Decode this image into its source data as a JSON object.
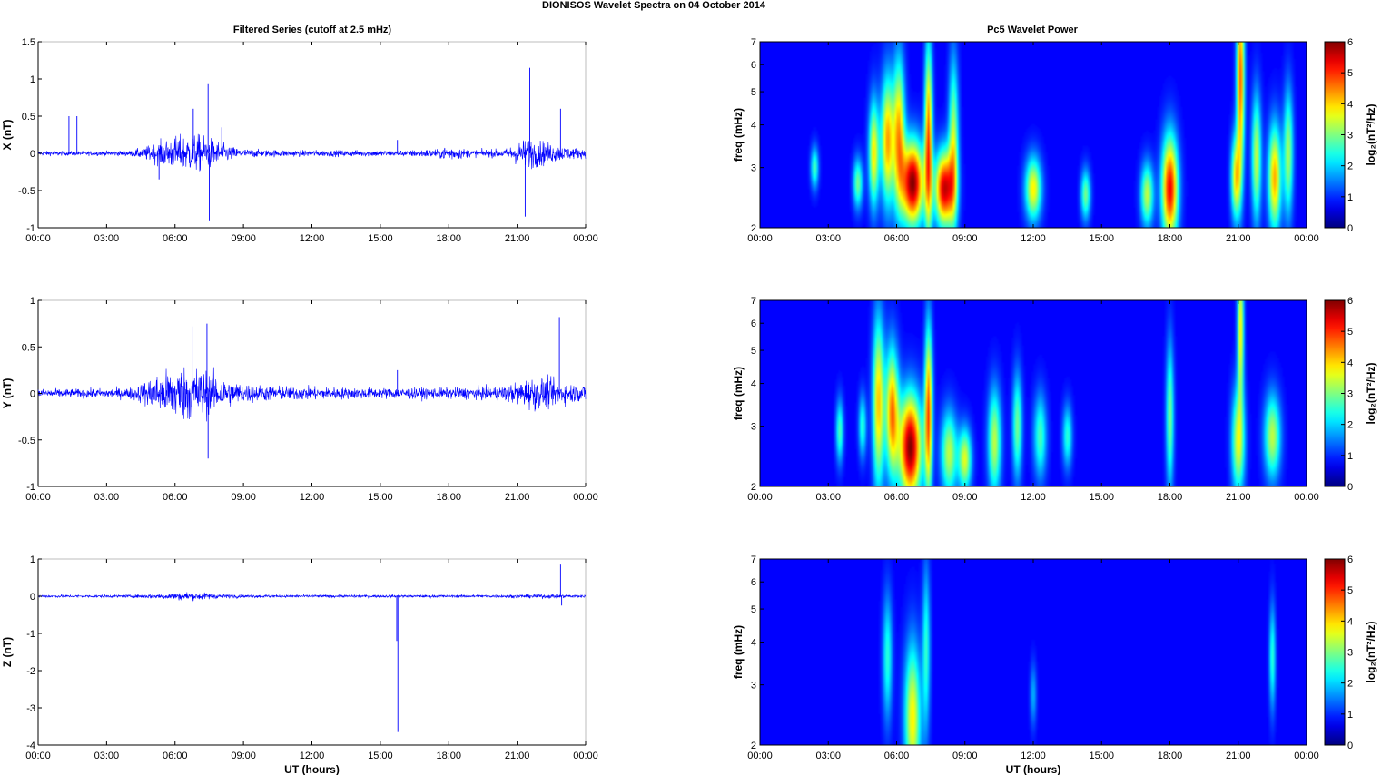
{
  "figure_title": "DIONISOS Wavelet Spectra on 04 October   2014",
  "left_column_title": "Filtered Series (cutoff at 2.5 mHz)",
  "right_column_title": "Pc5 Wavelet Power",
  "colors": {
    "trace": "#0000ff",
    "axes": "#000000",
    "plot_frame": "#bebebe",
    "background": "#ffffff"
  },
  "chart_data": [
    {
      "type": "line",
      "component": "X",
      "ylabel": "X (nT)",
      "xlabel": "",
      "xlim": [
        0,
        24
      ],
      "ylim": [
        -1,
        1.5
      ],
      "yticks": [
        -1,
        -0.5,
        0,
        0.5,
        1,
        1.5
      ],
      "ytick_labels": [
        "-1",
        "-0.5",
        "0",
        "0.5",
        "1",
        "1.5"
      ],
      "xtick_labels": [
        "00:00",
        "03:00",
        "06:00",
        "09:00",
        "12:00",
        "15:00",
        "18:00",
        "21:00",
        "00:00"
      ],
      "envelope_hours": [
        0,
        2,
        4,
        4.5,
        5,
        5.5,
        6,
        6.5,
        7,
        7.5,
        8,
        8.5,
        9,
        10,
        12,
        14,
        16,
        17.5,
        18,
        18.5,
        19,
        20.5,
        21,
        21.5,
        22,
        22.5,
        23,
        24
      ],
      "envelope_amplitude_nT": [
        0.05,
        0.05,
        0.06,
        0.12,
        0.2,
        0.3,
        0.38,
        0.42,
        0.42,
        0.36,
        0.25,
        0.15,
        0.1,
        0.08,
        0.07,
        0.07,
        0.07,
        0.1,
        0.18,
        0.12,
        0.08,
        0.1,
        0.25,
        0.35,
        0.3,
        0.22,
        0.16,
        0.1
      ],
      "spikes": [
        {
          "t": 1.35,
          "v": 0.5
        },
        {
          "t": 1.7,
          "v": 0.5
        },
        {
          "t": 5.3,
          "v": -0.35
        },
        {
          "t": 6.8,
          "v": 0.6
        },
        {
          "t": 7.45,
          "v": 0.93
        },
        {
          "t": 7.5,
          "v": -0.9
        },
        {
          "t": 8.05,
          "v": 0.35
        },
        {
          "t": 15.75,
          "v": 0.18
        },
        {
          "t": 21.35,
          "v": -0.85
        },
        {
          "t": 21.55,
          "v": 1.15
        },
        {
          "t": 22.9,
          "v": 0.6
        }
      ]
    },
    {
      "type": "line",
      "component": "Y",
      "ylabel": "Y (nT)",
      "xlabel": "",
      "xlim": [
        0,
        24
      ],
      "ylim": [
        -1,
        1
      ],
      "yticks": [
        -1,
        -0.5,
        0,
        0.5,
        1
      ],
      "ytick_labels": [
        "-1",
        "-0.5",
        "0",
        "0.5",
        "1"
      ],
      "xtick_labels": [
        "00:00",
        "03:00",
        "06:00",
        "09:00",
        "12:00",
        "15:00",
        "18:00",
        "21:00",
        "00:00"
      ],
      "envelope_hours": [
        0,
        2,
        4,
        4.5,
        5,
        5.5,
        6,
        6.5,
        7,
        7.5,
        8,
        8.5,
        9,
        10,
        12,
        14,
        16,
        18,
        20,
        21,
        21.5,
        22,
        22.5,
        23,
        24
      ],
      "envelope_amplitude_nT": [
        0.08,
        0.08,
        0.1,
        0.18,
        0.3,
        0.4,
        0.48,
        0.5,
        0.48,
        0.4,
        0.3,
        0.22,
        0.18,
        0.14,
        0.12,
        0.1,
        0.1,
        0.1,
        0.12,
        0.2,
        0.28,
        0.3,
        0.25,
        0.2,
        0.15
      ],
      "spikes": [
        {
          "t": 6.75,
          "v": 0.72
        },
        {
          "t": 7.4,
          "v": 0.75
        },
        {
          "t": 7.45,
          "v": -0.7
        },
        {
          "t": 15.75,
          "v": 0.25
        },
        {
          "t": 22.85,
          "v": 0.82
        }
      ]
    },
    {
      "type": "line",
      "component": "Z",
      "ylabel": "Z (nT)",
      "xlabel": "UT (hours)",
      "xlim": [
        0,
        24
      ],
      "ylim": [
        -4,
        1
      ],
      "yticks": [
        -4,
        -3,
        -2,
        -1,
        0,
        1
      ],
      "ytick_labels": [
        "-4",
        "-3",
        "-2",
        "-1",
        "0",
        "1"
      ],
      "xtick_labels": [
        "00:00",
        "03:00",
        "06:00",
        "09:00",
        "12:00",
        "15:00",
        "18:00",
        "21:00",
        "00:00"
      ],
      "envelope_hours": [
        0,
        4,
        5,
        6,
        6.5,
        7,
        8,
        9,
        12,
        16,
        20,
        22,
        23,
        24
      ],
      "envelope_amplitude_nT": [
        0.06,
        0.06,
        0.1,
        0.16,
        0.2,
        0.18,
        0.1,
        0.07,
        0.06,
        0.06,
        0.06,
        0.1,
        0.08,
        0.06
      ],
      "spikes": [
        {
          "t": 15.72,
          "v": -1.2
        },
        {
          "t": 15.77,
          "v": -3.65
        },
        {
          "t": 22.9,
          "v": 0.85
        },
        {
          "t": 22.95,
          "v": -0.25
        }
      ]
    },
    {
      "type": "heatmap",
      "component": "X",
      "ylabel": "freq (mHz)",
      "xlabel": "",
      "yscale": "log",
      "xlim": [
        0,
        24
      ],
      "ylim": [
        2,
        7
      ],
      "yticks": [
        2,
        3,
        4,
        5,
        6,
        7
      ],
      "ytick_labels": [
        "2",
        "3",
        "4",
        "5",
        "6",
        "7"
      ],
      "xtick_labels": [
        "00:00",
        "03:00",
        "06:00",
        "09:00",
        "12:00",
        "15:00",
        "18:00",
        "21:00",
        "00:00"
      ],
      "colorbar": {
        "label": "log₂(nT²/Hz)",
        "ticks": [
          0,
          1,
          2,
          3,
          4,
          5,
          6
        ],
        "tick_labels": [
          "0",
          "1",
          "2",
          "3",
          "4",
          "5",
          "6"
        ],
        "range": [
          0,
          6
        ],
        "colormap": "jet"
      },
      "blobs": [
        {
          "t": 2.4,
          "f": 3.0,
          "dt": 0.12,
          "df": 0.1,
          "power": 2.2
        },
        {
          "t": 4.3,
          "f": 2.7,
          "dt": 0.15,
          "df": 0.12,
          "power": 2.5
        },
        {
          "t": 5.0,
          "f": 3.3,
          "dt": 0.16,
          "df": 0.25,
          "power": 3.5
        },
        {
          "t": 5.6,
          "f": 3.6,
          "dt": 0.2,
          "df": 0.3,
          "power": 4.0
        },
        {
          "t": 6.1,
          "f": 3.8,
          "dt": 0.18,
          "df": 0.35,
          "power": 3.8
        },
        {
          "t": 6.7,
          "f": 2.7,
          "dt": 0.35,
          "df": 0.2,
          "power": 6.0
        },
        {
          "t": 7.4,
          "f": 3.6,
          "dt": 0.12,
          "df": 0.45,
          "power": 4.5
        },
        {
          "t": 8.1,
          "f": 2.6,
          "dt": 0.3,
          "df": 0.18,
          "power": 5.5
        },
        {
          "t": 8.5,
          "f": 3.5,
          "dt": 0.15,
          "df": 0.4,
          "power": 3.0
        },
        {
          "t": 12.0,
          "f": 2.6,
          "dt": 0.25,
          "df": 0.15,
          "power": 3.5
        },
        {
          "t": 14.3,
          "f": 2.5,
          "dt": 0.15,
          "df": 0.12,
          "power": 2.5
        },
        {
          "t": 17.0,
          "f": 2.5,
          "dt": 0.2,
          "df": 0.15,
          "power": 3.0
        },
        {
          "t": 18.0,
          "f": 2.6,
          "dt": 0.25,
          "df": 0.25,
          "power": 5.2
        },
        {
          "t": 21.1,
          "f": 5.5,
          "dt": 0.12,
          "df": 0.45,
          "power": 4.5
        },
        {
          "t": 20.9,
          "f": 2.8,
          "dt": 0.15,
          "df": 0.2,
          "power": 3.5
        },
        {
          "t": 21.8,
          "f": 3.2,
          "dt": 0.15,
          "df": 0.3,
          "power": 3.0
        },
        {
          "t": 22.6,
          "f": 2.8,
          "dt": 0.2,
          "df": 0.25,
          "power": 4.0
        },
        {
          "t": 23.2,
          "f": 3.3,
          "dt": 0.15,
          "df": 0.3,
          "power": 2.8
        }
      ]
    },
    {
      "type": "heatmap",
      "component": "Y",
      "ylabel": "freq (mHz)",
      "xlabel": "",
      "yscale": "log",
      "xlim": [
        0,
        24
      ],
      "ylim": [
        2,
        7
      ],
      "yticks": [
        2,
        3,
        4,
        5,
        6,
        7
      ],
      "ytick_labels": [
        "2",
        "3",
        "4",
        "5",
        "6",
        "7"
      ],
      "xtick_labels": [
        "00:00",
        "03:00",
        "06:00",
        "09:00",
        "12:00",
        "15:00",
        "18:00",
        "21:00",
        "00:00"
      ],
      "colorbar": {
        "label": "log₂(nT²/Hz)",
        "ticks": [
          0,
          1,
          2,
          3,
          4,
          5,
          6
        ],
        "tick_labels": [
          "0",
          "1",
          "2",
          "3",
          "4",
          "5",
          "6"
        ],
        "range": [
          0,
          6
        ],
        "colormap": "jet"
      },
      "blobs": [
        {
          "t": 3.5,
          "f": 2.9,
          "dt": 0.12,
          "df": 0.15,
          "power": 2.2
        },
        {
          "t": 4.5,
          "f": 3.0,
          "dt": 0.12,
          "df": 0.15,
          "power": 2.0
        },
        {
          "t": 5.2,
          "f": 3.5,
          "dt": 0.18,
          "df": 0.4,
          "power": 3.8
        },
        {
          "t": 5.8,
          "f": 3.3,
          "dt": 0.2,
          "df": 0.3,
          "power": 4.2
        },
        {
          "t": 6.6,
          "f": 2.6,
          "dt": 0.35,
          "df": 0.25,
          "power": 6.0
        },
        {
          "t": 7.4,
          "f": 3.3,
          "dt": 0.12,
          "df": 0.4,
          "power": 4.5
        },
        {
          "t": 8.3,
          "f": 2.5,
          "dt": 0.25,
          "df": 0.2,
          "power": 3.0
        },
        {
          "t": 9.0,
          "f": 2.4,
          "dt": 0.2,
          "df": 0.15,
          "power": 3.2
        },
        {
          "t": 10.3,
          "f": 2.7,
          "dt": 0.2,
          "df": 0.25,
          "power": 3.0
        },
        {
          "t": 11.3,
          "f": 3.0,
          "dt": 0.15,
          "df": 0.25,
          "power": 2.5
        },
        {
          "t": 12.3,
          "f": 2.8,
          "dt": 0.2,
          "df": 0.2,
          "power": 2.2
        },
        {
          "t": 13.5,
          "f": 2.8,
          "dt": 0.15,
          "df": 0.15,
          "power": 2.0
        },
        {
          "t": 18.0,
          "f": 3.2,
          "dt": 0.12,
          "df": 0.35,
          "power": 2.5
        },
        {
          "t": 21.0,
          "f": 2.7,
          "dt": 0.2,
          "df": 0.25,
          "power": 3.2
        },
        {
          "t": 21.1,
          "f": 5.8,
          "dt": 0.1,
          "df": 0.35,
          "power": 3.5
        },
        {
          "t": 22.5,
          "f": 2.8,
          "dt": 0.25,
          "df": 0.2,
          "power": 3.0
        }
      ]
    },
    {
      "type": "heatmap",
      "component": "Z",
      "ylabel": "freq (mHz)",
      "xlabel": "UT (hours)",
      "yscale": "log",
      "xlim": [
        0,
        24
      ],
      "ylim": [
        2,
        7
      ],
      "yticks": [
        2,
        3,
        4,
        5,
        6,
        7
      ],
      "ytick_labels": [
        "2",
        "3",
        "4",
        "5",
        "6",
        "7"
      ],
      "xtick_labels": [
        "00:00",
        "03:00",
        "06:00",
        "09:00",
        "12:00",
        "15:00",
        "18:00",
        "21:00",
        "00:00"
      ],
      "colorbar": {
        "label": "log₂(nT²/Hz)",
        "ticks": [
          0,
          1,
          2,
          3,
          4,
          5,
          6
        ],
        "tick_labels": [
          "0",
          "1",
          "2",
          "3",
          "4",
          "5",
          "6"
        ],
        "range": [
          0,
          6
        ],
        "colormap": "jet"
      },
      "blobs": [
        {
          "t": 5.6,
          "f": 3.6,
          "dt": 0.15,
          "df": 0.3,
          "power": 2.0
        },
        {
          "t": 6.7,
          "f": 2.4,
          "dt": 0.25,
          "df": 0.35,
          "power": 3.5
        },
        {
          "t": 7.3,
          "f": 3.8,
          "dt": 0.12,
          "df": 0.4,
          "power": 2.0
        },
        {
          "t": 12.0,
          "f": 2.8,
          "dt": 0.1,
          "df": 0.15,
          "power": 1.2
        },
        {
          "t": 22.5,
          "f": 3.6,
          "dt": 0.1,
          "df": 0.25,
          "power": 2.0
        }
      ]
    }
  ]
}
